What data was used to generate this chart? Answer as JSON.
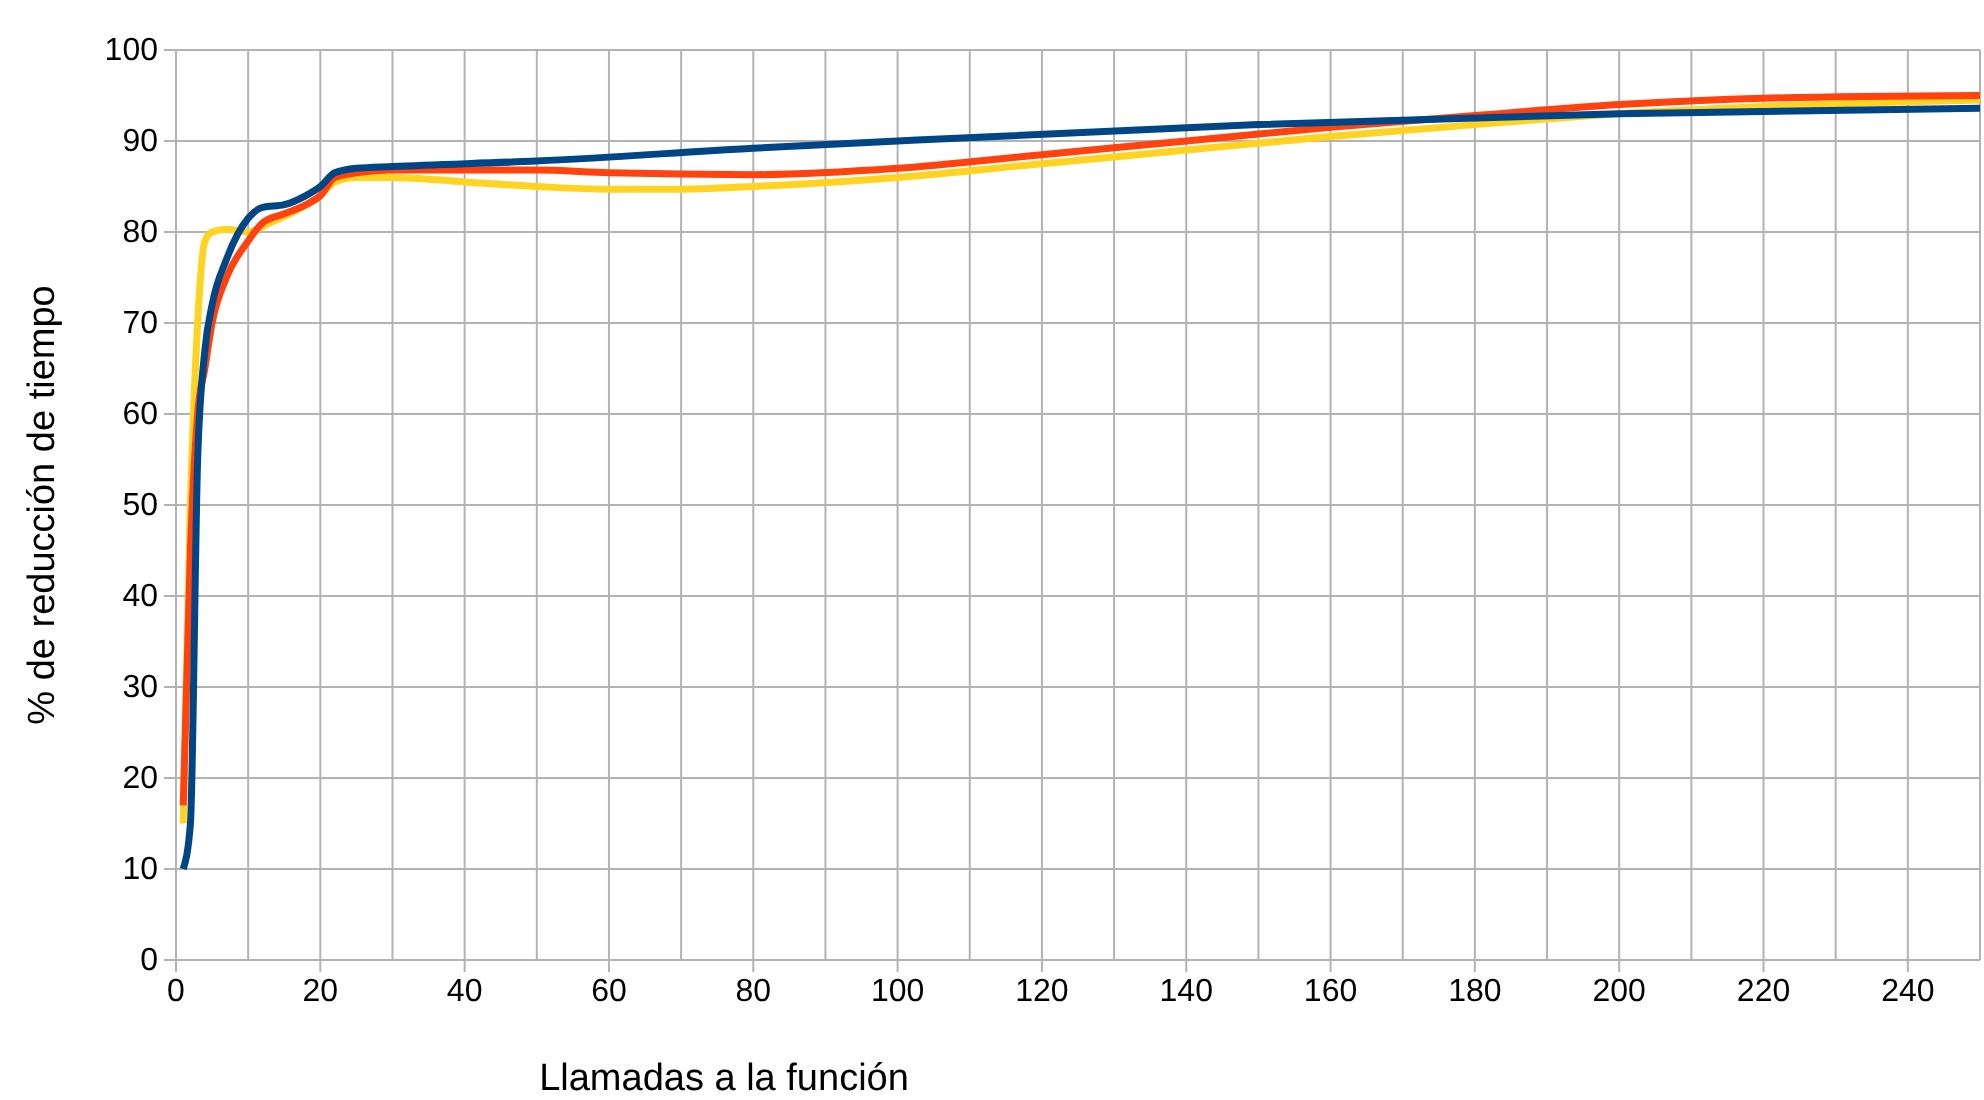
{
  "chart_data": {
    "type": "line",
    "xlabel": "Llamadas a la función",
    "ylabel": "% de reducción de tiempo",
    "xlim": [
      0,
      250
    ],
    "xticks": [
      0,
      20,
      40,
      60,
      80,
      100,
      120,
      140,
      160,
      180,
      200,
      220,
      240
    ],
    "ylim": [
      0,
      100
    ],
    "yticks": [
      0,
      10,
      20,
      30,
      40,
      50,
      60,
      70,
      80,
      90,
      100
    ],
    "grid": true,
    "marker": "none",
    "line_style": "solid",
    "series": [
      {
        "color": "#ffd320",
        "x": [
          1,
          2,
          3,
          4,
          5,
          7,
          10,
          13,
          17,
          20,
          22,
          25,
          30,
          40,
          50,
          60,
          70,
          80,
          100,
          120,
          140,
          160,
          180,
          200,
          220,
          250
        ],
        "values": [
          15,
          50,
          70,
          79,
          80,
          80.3,
          80,
          81,
          82.5,
          84,
          85.5,
          86,
          86,
          85.5,
          85,
          84.7,
          84.7,
          85,
          86,
          87.5,
          89,
          90.5,
          91.8,
          93,
          93.8,
          94.5
        ]
      },
      {
        "color": "#ff420e",
        "x": [
          1,
          2,
          3,
          4,
          5,
          7,
          10,
          12,
          15,
          18,
          20,
          22,
          25,
          30,
          50,
          60,
          80,
          100,
          120,
          140,
          160,
          180,
          200,
          220,
          250
        ],
        "values": [
          17,
          45,
          60,
          65,
          70,
          75,
          79,
          81,
          82,
          83,
          84,
          86,
          86.5,
          86.8,
          86.8,
          86.5,
          86.3,
          87,
          88.5,
          90,
          91.5,
          92.8,
          94,
          94.7,
          95
        ]
      },
      {
        "color": "#004586",
        "x": [
          1,
          2,
          3,
          4,
          5,
          7,
          10,
          12,
          15,
          18,
          20,
          22,
          25,
          30,
          50,
          80,
          100,
          150,
          200,
          250
        ],
        "values": [
          10,
          15,
          55,
          67,
          72,
          77,
          81.5,
          82.7,
          83,
          84,
          85,
          86.5,
          87,
          87.2,
          87.8,
          89.2,
          90,
          91.8,
          93,
          93.6
        ]
      }
    ]
  }
}
